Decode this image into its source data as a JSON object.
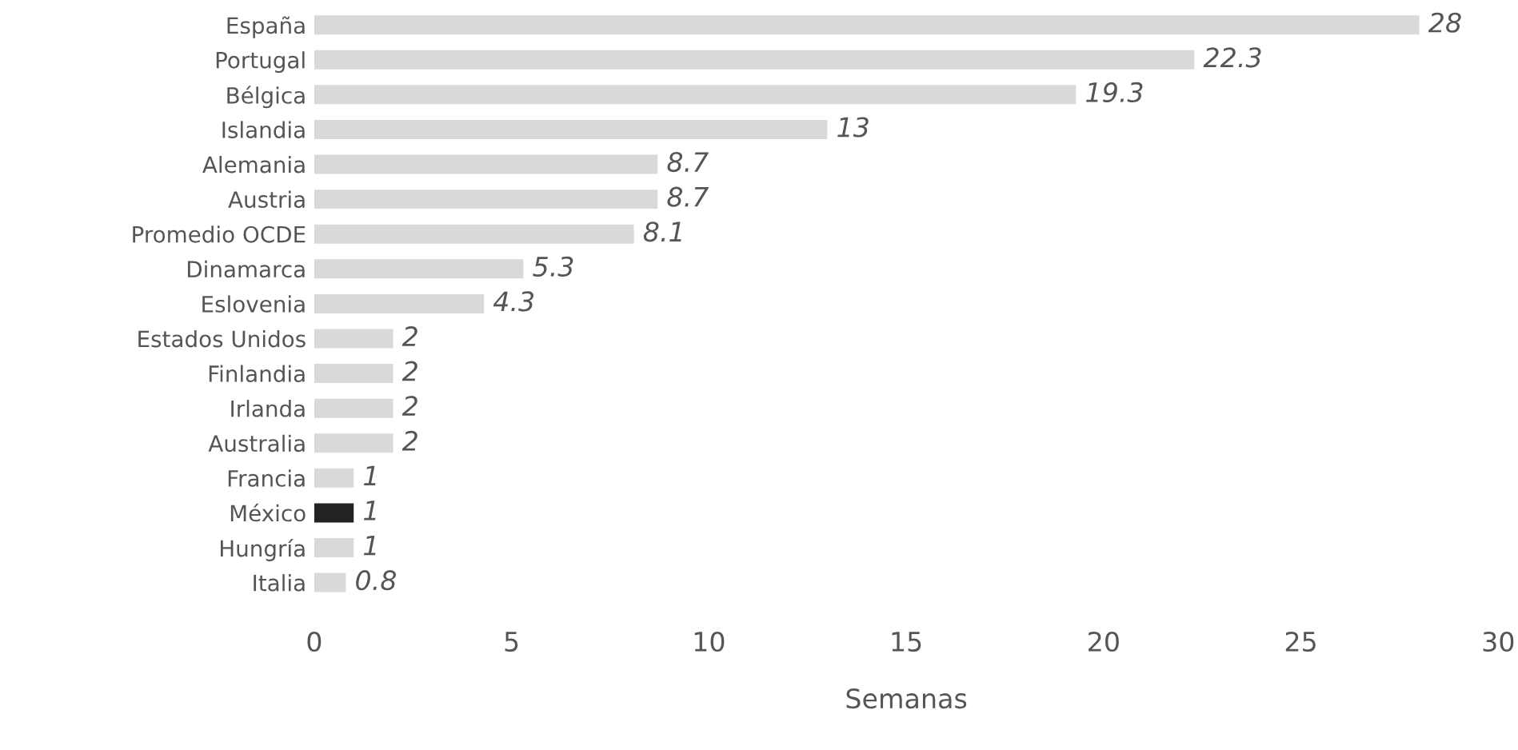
{
  "chart_data": {
    "type": "bar",
    "orientation": "horizontal",
    "xlabel": "Semanas",
    "categories": [
      "España",
      "Portugal",
      "Bélgica",
      "Islandia",
      "Alemania",
      "Austria",
      "Promedio OCDE",
      "Dinamarca",
      "Eslovenia",
      "Estados Unidos",
      "Finlandia",
      "Irlanda",
      "Australia",
      "Francia",
      "México",
      "Hungría",
      "Italia"
    ],
    "values": [
      28,
      22.3,
      19.3,
      13,
      8.7,
      8.7,
      8.1,
      5.3,
      4.3,
      2,
      2,
      2,
      2,
      1,
      1,
      1,
      0.8
    ],
    "colors": [
      "#d9d9d9",
      "#d9d9d9",
      "#d9d9d9",
      "#d9d9d9",
      "#d9d9d9",
      "#d9d9d9",
      "#d9d9d9",
      "#d9d9d9",
      "#d9d9d9",
      "#d9d9d9",
      "#d9d9d9",
      "#d9d9d9",
      "#d9d9d9",
      "#d9d9d9",
      "#222222",
      "#d9d9d9",
      "#d9d9d9"
    ],
    "data_labels": true,
    "xlim": [
      0,
      30
    ],
    "xticks": [
      0,
      5,
      10,
      15,
      20,
      25,
      30
    ],
    "grid": false,
    "legend": false
  }
}
